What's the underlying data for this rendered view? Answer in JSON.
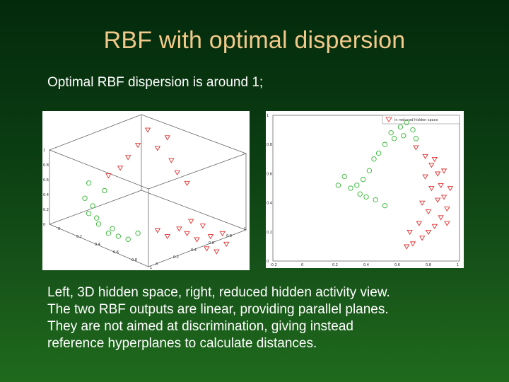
{
  "slide": {
    "title": "RBF with optimal dispersion",
    "subtitle": "Optimal RBF dispersion is around 1;",
    "caption_lines": [
      "Left, 3D hidden space, right, reduced hidden activity view.",
      "The two RBF outputs are linear, providing parallel planes.",
      "They are not aimed at discrimination, giving instead",
      "reference hyperplanes to calculate distances."
    ]
  },
  "colors": {
    "class_triangle": "#e03030",
    "class_circle": "#2fb52f",
    "title": "#f2c98a",
    "text": "#ffffff"
  },
  "chart_data": [
    {
      "type": "scatter",
      "panel": "left",
      "projection": "3d",
      "title": "",
      "xlabel": "",
      "ylabel": "",
      "zlabel": "",
      "z_tick_labels": [
        "0",
        "0.2",
        "0.4",
        "0.6",
        "0.8",
        "1"
      ],
      "x_tick_labels": [
        "0",
        "0.2",
        "0.4",
        "0.6",
        "0.8",
        "1"
      ],
      "y_tick_labels": [
        "0",
        "0.2",
        "0.4",
        "0.6",
        "0.8",
        "1"
      ],
      "series": [
        {
          "marker": "triangle-down",
          "color": "#e03030",
          "points": [
            [
              0.55,
              0.78
            ],
            [
              0.6,
              0.85
            ],
            [
              0.5,
              0.9
            ],
            [
              0.45,
              0.8
            ],
            [
              0.4,
              0.72
            ],
            [
              0.36,
              0.65
            ],
            [
              0.3,
              0.6
            ],
            [
              0.7,
              0.55
            ],
            [
              0.65,
              0.62
            ],
            [
              0.62,
              0.7
            ],
            [
              0.7,
              0.22
            ],
            [
              0.75,
              0.18
            ],
            [
              0.8,
              0.12
            ],
            [
              0.85,
              0.1
            ],
            [
              0.9,
              0.15
            ],
            [
              0.82,
              0.2
            ],
            [
              0.78,
              0.27
            ],
            [
              0.72,
              0.3
            ],
            [
              0.66,
              0.25
            ],
            [
              0.6,
              0.2
            ],
            [
              0.55,
              0.24
            ],
            [
              0.88,
              0.22
            ]
          ]
        },
        {
          "marker": "circle",
          "color": "#2fb52f",
          "points": [
            [
              0.2,
              0.55
            ],
            [
              0.18,
              0.45
            ],
            [
              0.2,
              0.35
            ],
            [
              0.25,
              0.28
            ],
            [
              0.3,
              0.22
            ],
            [
              0.35,
              0.2
            ],
            [
              0.4,
              0.18
            ],
            [
              0.45,
              0.22
            ],
            [
              0.22,
              0.4
            ],
            [
              0.28,
              0.5
            ],
            [
              0.24,
              0.32
            ],
            [
              0.32,
              0.25
            ]
          ]
        }
      ]
    },
    {
      "type": "scatter",
      "panel": "right",
      "title": "",
      "xlabel": "",
      "ylabel": "",
      "legend": [
        "in reduced hidden space"
      ],
      "legend_placement": "top-right",
      "xlim": [
        -0.2,
        1.0
      ],
      "ylim": [
        0,
        1
      ],
      "x_tick_labels": [
        "-0.2",
        "0",
        "0.2",
        "0.4",
        "0.6",
        "0.8",
        "1"
      ],
      "y_tick_labels": [
        "0",
        "0.2",
        "0.4",
        "0.6",
        "0.8",
        "1"
      ],
      "series": [
        {
          "marker": "circle",
          "color": "#2fb52f",
          "points": [
            [
              0.62,
              0.92
            ],
            [
              0.66,
              0.95
            ],
            [
              0.7,
              0.9
            ],
            [
              0.64,
              0.86
            ],
            [
              0.58,
              0.84
            ],
            [
              0.52,
              0.8
            ],
            [
              0.48,
              0.74
            ],
            [
              0.45,
              0.7
            ],
            [
              0.42,
              0.62
            ],
            [
              0.38,
              0.56
            ],
            [
              0.34,
              0.52
            ],
            [
              0.3,
              0.5
            ],
            [
              0.26,
              0.58
            ],
            [
              0.22,
              0.52
            ],
            [
              0.4,
              0.44
            ],
            [
              0.46,
              0.42
            ],
            [
              0.52,
              0.38
            ],
            [
              0.36,
              0.46
            ],
            [
              0.56,
              0.88
            ],
            [
              0.72,
              0.84
            ]
          ]
        },
        {
          "marker": "triangle-down",
          "color": "#e03030",
          "points": [
            [
              0.72,
              0.78
            ],
            [
              0.78,
              0.72
            ],
            [
              0.82,
              0.66
            ],
            [
              0.86,
              0.6
            ],
            [
              0.88,
              0.52
            ],
            [
              0.9,
              0.44
            ],
            [
              0.92,
              0.36
            ],
            [
              0.88,
              0.3
            ],
            [
              0.84,
              0.24
            ],
            [
              0.8,
              0.2
            ],
            [
              0.76,
              0.16
            ],
            [
              0.7,
              0.12
            ],
            [
              0.66,
              0.1
            ],
            [
              0.74,
              0.26
            ],
            [
              0.8,
              0.34
            ],
            [
              0.86,
              0.42
            ],
            [
              0.82,
              0.5
            ],
            [
              0.78,
              0.58
            ],
            [
              0.84,
              0.7
            ],
            [
              0.9,
              0.62
            ],
            [
              0.94,
              0.5
            ],
            [
              0.92,
              0.26
            ],
            [
              0.68,
              0.2
            ],
            [
              0.76,
              0.4
            ]
          ]
        }
      ]
    }
  ]
}
